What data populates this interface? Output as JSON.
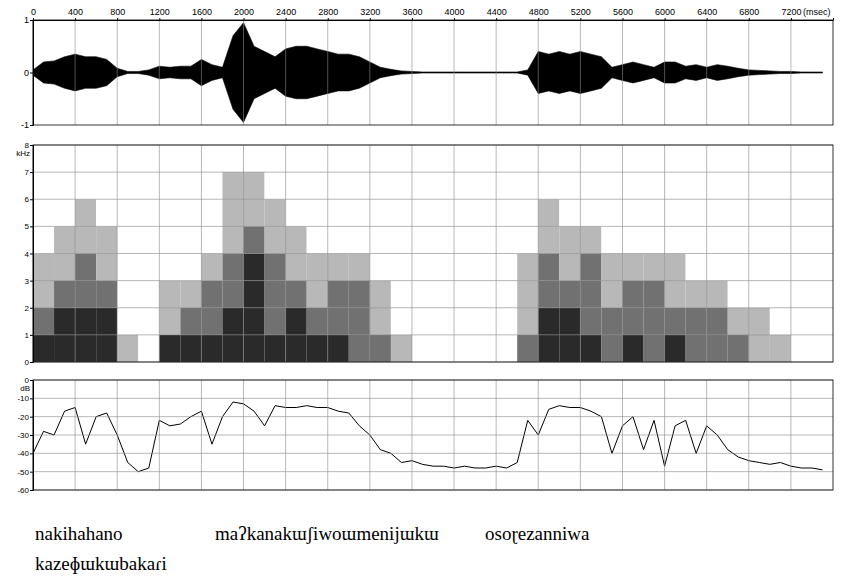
{
  "chart_data": [
    {
      "type": "area",
      "x_label": "(msec)",
      "color": "#000000",
      "xlim": [
        0,
        7600
      ],
      "xticks": [
        0,
        400,
        800,
        1200,
        1600,
        2000,
        2400,
        2800,
        3200,
        3600,
        4000,
        4400,
        4800,
        5200,
        5600,
        6000,
        6400,
        6800,
        7200
      ],
      "ylim": [
        -1,
        1
      ],
      "yticks": [
        -1,
        0,
        1
      ],
      "grid": true,
      "x": [
        0,
        100,
        200,
        300,
        400,
        500,
        600,
        700,
        800,
        900,
        1000,
        1100,
        1200,
        1300,
        1400,
        1500,
        1600,
        1700,
        1800,
        1900,
        2000,
        2100,
        2200,
        2300,
        2400,
        2500,
        2600,
        2700,
        2800,
        2900,
        3000,
        3100,
        3200,
        3300,
        3400,
        3500,
        3600,
        3700,
        3800,
        3900,
        4000,
        4100,
        4200,
        4300,
        4400,
        4500,
        4600,
        4700,
        4800,
        4900,
        5000,
        5100,
        5200,
        5300,
        5400,
        5500,
        5600,
        5700,
        5800,
        5900,
        6000,
        6100,
        6200,
        6300,
        6400,
        6500,
        6600,
        6700,
        6800,
        6900,
        7000,
        7100,
        7200,
        7300,
        7400,
        7500
      ],
      "values": [
        0.05,
        0.2,
        0.22,
        0.3,
        0.35,
        0.3,
        0.3,
        0.25,
        0.08,
        0.02,
        0.02,
        0.05,
        0.12,
        0.1,
        0.12,
        0.12,
        0.25,
        0.15,
        0.1,
        0.7,
        0.95,
        0.5,
        0.4,
        0.3,
        0.45,
        0.5,
        0.5,
        0.45,
        0.4,
        0.35,
        0.35,
        0.3,
        0.2,
        0.1,
        0.06,
        0.03,
        0.02,
        0.01,
        0.01,
        0.01,
        0.01,
        0.01,
        0.01,
        0.01,
        0.01,
        0.01,
        0.01,
        0.05,
        0.4,
        0.35,
        0.4,
        0.35,
        0.4,
        0.35,
        0.3,
        0.1,
        0.15,
        0.2,
        0.15,
        0.1,
        0.2,
        0.2,
        0.12,
        0.15,
        0.1,
        0.15,
        0.12,
        0.08,
        0.05,
        0.04,
        0.03,
        0.02,
        0.02,
        0.01,
        0.01,
        0.01
      ]
    },
    {
      "type": "heatmap",
      "y_label": "kHz",
      "color": "#2a2a2a",
      "tick_labels": "y",
      "xlim": [
        0,
        7600
      ],
      "xticks": [
        0,
        400,
        800,
        1200,
        1600,
        2000,
        2400,
        2800,
        3200,
        3600,
        4000,
        4400,
        4800,
        5200,
        5600,
        6000,
        6400,
        6800,
        7200
      ],
      "ylim": [
        0,
        8
      ],
      "yticks": [
        0,
        1,
        2,
        3,
        4,
        5,
        6,
        7,
        8
      ],
      "grid": true,
      "xbins": [
        0,
        200,
        400,
        600,
        800,
        1000,
        1200,
        1400,
        1600,
        1800,
        2000,
        2200,
        2400,
        2600,
        2800,
        3000,
        3200,
        3400,
        3600,
        3800,
        4000,
        4200,
        4400,
        4600,
        4800,
        5000,
        5200,
        5400,
        5600,
        5800,
        6000,
        6200,
        6400,
        6600,
        6800,
        7000,
        7200,
        7400,
        7600
      ],
      "ybins": [
        0,
        1,
        2,
        3,
        4,
        5,
        6,
        7,
        8
      ],
      "values": [
        [
          3,
          2,
          1,
          1,
          0,
          0,
          0,
          0
        ],
        [
          3,
          3,
          2,
          1,
          1,
          0,
          0,
          0
        ],
        [
          3,
          3,
          2,
          2,
          1,
          1,
          0,
          0
        ],
        [
          3,
          3,
          2,
          1,
          1,
          0,
          0,
          0
        ],
        [
          1,
          0,
          0,
          0,
          0,
          0,
          0,
          0
        ],
        [
          0,
          0,
          0,
          0,
          0,
          0,
          0,
          0
        ],
        [
          3,
          1,
          1,
          0,
          0,
          0,
          0,
          0
        ],
        [
          3,
          2,
          1,
          0,
          0,
          0,
          0,
          0
        ],
        [
          3,
          2,
          2,
          1,
          0,
          0,
          0,
          0
        ],
        [
          3,
          3,
          2,
          2,
          1,
          1,
          1,
          0
        ],
        [
          3,
          3,
          3,
          3,
          2,
          1,
          1,
          0
        ],
        [
          3,
          2,
          2,
          2,
          1,
          1,
          0,
          0
        ],
        [
          3,
          3,
          2,
          1,
          1,
          0,
          0,
          0
        ],
        [
          3,
          2,
          1,
          1,
          0,
          0,
          0,
          0
        ],
        [
          3,
          2,
          2,
          1,
          0,
          0,
          0,
          0
        ],
        [
          2,
          2,
          2,
          1,
          0,
          0,
          0,
          0
        ],
        [
          2,
          1,
          1,
          0,
          0,
          0,
          0,
          0
        ],
        [
          1,
          0,
          0,
          0,
          0,
          0,
          0,
          0
        ],
        [
          0,
          0,
          0,
          0,
          0,
          0,
          0,
          0
        ],
        [
          0,
          0,
          0,
          0,
          0,
          0,
          0,
          0
        ],
        [
          0,
          0,
          0,
          0,
          0,
          0,
          0,
          0
        ],
        [
          0,
          0,
          0,
          0,
          0,
          0,
          0,
          0
        ],
        [
          0,
          0,
          0,
          0,
          0,
          0,
          0,
          0
        ],
        [
          2,
          1,
          1,
          1,
          0,
          0,
          0,
          0
        ],
        [
          3,
          3,
          2,
          2,
          1,
          1,
          0,
          0
        ],
        [
          3,
          3,
          2,
          1,
          1,
          0,
          0,
          0
        ],
        [
          3,
          2,
          2,
          2,
          1,
          0,
          0,
          0
        ],
        [
          2,
          2,
          1,
          1,
          0,
          0,
          0,
          0
        ],
        [
          3,
          2,
          2,
          1,
          0,
          0,
          0,
          0
        ],
        [
          2,
          2,
          2,
          1,
          0,
          0,
          0,
          0
        ],
        [
          3,
          2,
          1,
          1,
          0,
          0,
          0,
          0
        ],
        [
          2,
          2,
          1,
          0,
          0,
          0,
          0,
          0
        ],
        [
          2,
          2,
          1,
          0,
          0,
          0,
          0,
          0
        ],
        [
          2,
          1,
          0,
          0,
          0,
          0,
          0,
          0
        ],
        [
          1,
          1,
          0,
          0,
          0,
          0,
          0,
          0
        ],
        [
          1,
          0,
          0,
          0,
          0,
          0,
          0,
          0
        ],
        [
          0,
          0,
          0,
          0,
          0,
          0,
          0,
          0
        ],
        [
          0,
          0,
          0,
          0,
          0,
          0,
          0,
          0
        ]
      ]
    },
    {
      "type": "line",
      "y_label": "dB",
      "color": "#000000",
      "tick_labels": "y",
      "xlim": [
        0,
        7600
      ],
      "xticks": [
        0,
        400,
        800,
        1200,
        1600,
        2000,
        2400,
        2800,
        3200,
        3600,
        4000,
        4400,
        4800,
        5200,
        5600,
        6000,
        6400,
        6800,
        7200
      ],
      "ylim": [
        -60,
        0
      ],
      "yticks": [
        -60,
        -50,
        -40,
        -30,
        -20,
        -10,
        0
      ],
      "grid": true,
      "x": [
        0,
        100,
        200,
        300,
        400,
        500,
        600,
        700,
        800,
        900,
        1000,
        1100,
        1200,
        1300,
        1400,
        1500,
        1600,
        1700,
        1800,
        1900,
        2000,
        2100,
        2200,
        2300,
        2400,
        2500,
        2600,
        2700,
        2800,
        2900,
        3000,
        3100,
        3200,
        3300,
        3400,
        3500,
        3600,
        3700,
        3800,
        3900,
        4000,
        4100,
        4200,
        4300,
        4400,
        4500,
        4600,
        4700,
        4800,
        4900,
        5000,
        5100,
        5200,
        5300,
        5400,
        5500,
        5600,
        5700,
        5800,
        5900,
        6000,
        6100,
        6200,
        6300,
        6400,
        6500,
        6600,
        6700,
        6800,
        6900,
        7000,
        7100,
        7200,
        7300,
        7400,
        7500
      ],
      "values": [
        -40,
        -28,
        -30,
        -17,
        -15,
        -35,
        -20,
        -18,
        -30,
        -45,
        -50,
        -48,
        -22,
        -25,
        -24,
        -20,
        -17,
        -35,
        -20,
        -12,
        -13,
        -17,
        -25,
        -14,
        -15,
        -15,
        -14,
        -15,
        -15,
        -17,
        -18,
        -25,
        -30,
        -38,
        -40,
        -45,
        -44,
        -46,
        -47,
        -47,
        -48,
        -47,
        -48,
        -48,
        -47,
        -48,
        -45,
        -22,
        -30,
        -16,
        -14,
        -15,
        -15,
        -17,
        -20,
        -40,
        -25,
        -20,
        -38,
        -22,
        -47,
        -25,
        -22,
        -40,
        -25,
        -30,
        -38,
        -42,
        -44,
        -45,
        -46,
        -45,
        -47,
        -48,
        -48,
        -49
      ]
    }
  ],
  "transcription": [
    [
      "nakihahano",
      "maʔkanakɯʃiwoɯmenijɯkɯ",
      "osoɽezanniwa"
    ],
    [
      "kazeɸɯkɯbakaɾi"
    ]
  ]
}
